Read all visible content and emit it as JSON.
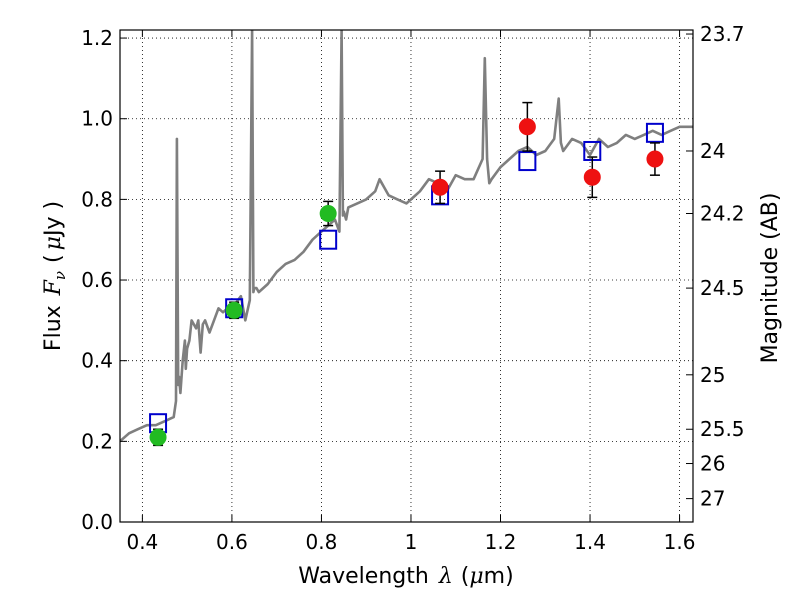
{
  "chart_data": {
    "type": "scatter",
    "xlabel_prefix": "Wavelength",
    "xlabel_symbol": "λ",
    "xlabel_unit_open": "(",
    "xlabel_unit_mu": "μ",
    "xlabel_unit_rest": "m)",
    "ylabel_prefix": "Flux",
    "ylabel_symbol": "F",
    "ylabel_sub": "ν",
    "ylabel_unit_open": "(",
    "ylabel_unit_mu": "μ",
    "ylabel_unit_rest": "Jy )",
    "y2label": "Magnitude (AB)",
    "xlim": [
      0.35,
      1.63
    ],
    "ylim": [
      0.0,
      1.22
    ],
    "grid": true,
    "x_ticks": [
      0.4,
      0.6,
      0.8,
      1.0,
      1.2,
      1.4,
      1.6
    ],
    "x_tick_labels": [
      "0.4",
      "0.6",
      "0.8",
      "1",
      "1.2",
      "1.4",
      "1.6"
    ],
    "y_ticks": [
      0.0,
      0.2,
      0.4,
      0.6,
      0.8,
      1.0,
      1.2
    ],
    "y_tick_labels": [
      "0.0",
      "0.2",
      "0.4",
      "0.6",
      "0.8",
      "1.0",
      "1.2"
    ],
    "y2_ticks": [
      {
        "label": "23.7",
        "flux": 1.21
      },
      {
        "label": "24",
        "flux": 0.92
      },
      {
        "label": "24.2",
        "flux": 0.765
      },
      {
        "label": "24.5",
        "flux": 0.58
      },
      {
        "label": "25",
        "flux": 0.365
      },
      {
        "label": "25.5",
        "flux": 0.23
      },
      {
        "label": "26",
        "flux": 0.145
      },
      {
        "label": "27",
        "flux": 0.058
      }
    ],
    "colors": {
      "model": "#7f7f7f",
      "green": "#22bb22",
      "red": "#ee1111",
      "blue": "#0000cc"
    },
    "series": [
      {
        "name": "model spectrum",
        "kind": "line",
        "x": [
          0.35,
          0.37,
          0.39,
          0.41,
          0.43,
          0.45,
          0.47,
          0.475,
          0.477,
          0.48,
          0.482,
          0.485,
          0.49,
          0.495,
          0.497,
          0.5,
          0.505,
          0.51,
          0.52,
          0.525,
          0.53,
          0.535,
          0.54,
          0.55,
          0.56,
          0.57,
          0.58,
          0.59,
          0.6,
          0.62,
          0.63,
          0.64,
          0.645,
          0.648,
          0.65,
          0.655,
          0.66,
          0.68,
          0.7,
          0.72,
          0.74,
          0.76,
          0.78,
          0.8,
          0.82,
          0.83,
          0.84,
          0.845,
          0.848,
          0.85,
          0.855,
          0.86,
          0.88,
          0.9,
          0.92,
          0.93,
          0.94,
          0.95,
          0.97,
          0.99,
          1.0,
          1.02,
          1.04,
          1.06,
          1.08,
          1.1,
          1.12,
          1.14,
          1.16,
          1.165,
          1.17,
          1.175,
          1.18,
          1.2,
          1.22,
          1.24,
          1.26,
          1.28,
          1.3,
          1.32,
          1.33,
          1.335,
          1.34,
          1.36,
          1.38,
          1.4,
          1.42,
          1.44,
          1.46,
          1.48,
          1.5,
          1.52,
          1.54,
          1.56,
          1.58,
          1.6,
          1.63
        ],
        "y": [
          0.2,
          0.22,
          0.23,
          0.24,
          0.24,
          0.25,
          0.26,
          0.3,
          0.95,
          0.34,
          0.36,
          0.32,
          0.4,
          0.45,
          0.38,
          0.43,
          0.45,
          0.5,
          0.48,
          0.5,
          0.42,
          0.49,
          0.5,
          0.47,
          0.5,
          0.53,
          0.52,
          0.53,
          0.53,
          0.56,
          0.5,
          0.55,
          1.22,
          0.57,
          0.58,
          0.58,
          0.57,
          0.59,
          0.62,
          0.64,
          0.65,
          0.67,
          0.7,
          0.72,
          0.74,
          0.75,
          0.72,
          1.22,
          0.76,
          0.77,
          0.75,
          0.78,
          0.79,
          0.8,
          0.82,
          0.85,
          0.83,
          0.81,
          0.8,
          0.79,
          0.8,
          0.82,
          0.85,
          0.84,
          0.82,
          0.86,
          0.85,
          0.85,
          0.9,
          1.15,
          0.9,
          0.84,
          0.85,
          0.88,
          0.9,
          0.92,
          0.93,
          0.91,
          0.92,
          0.95,
          1.05,
          0.94,
          0.92,
          0.95,
          0.94,
          0.91,
          0.95,
          0.93,
          0.94,
          0.96,
          0.95,
          0.96,
          0.97,
          0.96,
          0.97,
          0.98,
          0.98
        ]
      },
      {
        "name": "green points",
        "kind": "scatter",
        "marker": "circle",
        "x": [
          0.435,
          0.605,
          0.815
        ],
        "y": [
          0.21,
          0.525,
          0.765
        ],
        "yerr": [
          0.02,
          0.02,
          0.03
        ]
      },
      {
        "name": "red points",
        "kind": "scatter",
        "marker": "circle",
        "x": [
          1.065,
          1.26,
          1.405,
          1.545
        ],
        "y": [
          0.83,
          0.98,
          0.855,
          0.9
        ],
        "yerr": [
          0.04,
          0.06,
          0.05,
          0.04
        ]
      },
      {
        "name": "model photometry",
        "kind": "scatter",
        "marker": "open-square",
        "x": [
          0.435,
          0.605,
          0.815,
          1.065,
          1.26,
          1.405,
          1.545
        ],
        "y": [
          0.245,
          0.53,
          0.7,
          0.81,
          0.895,
          0.92,
          0.965
        ]
      }
    ]
  }
}
